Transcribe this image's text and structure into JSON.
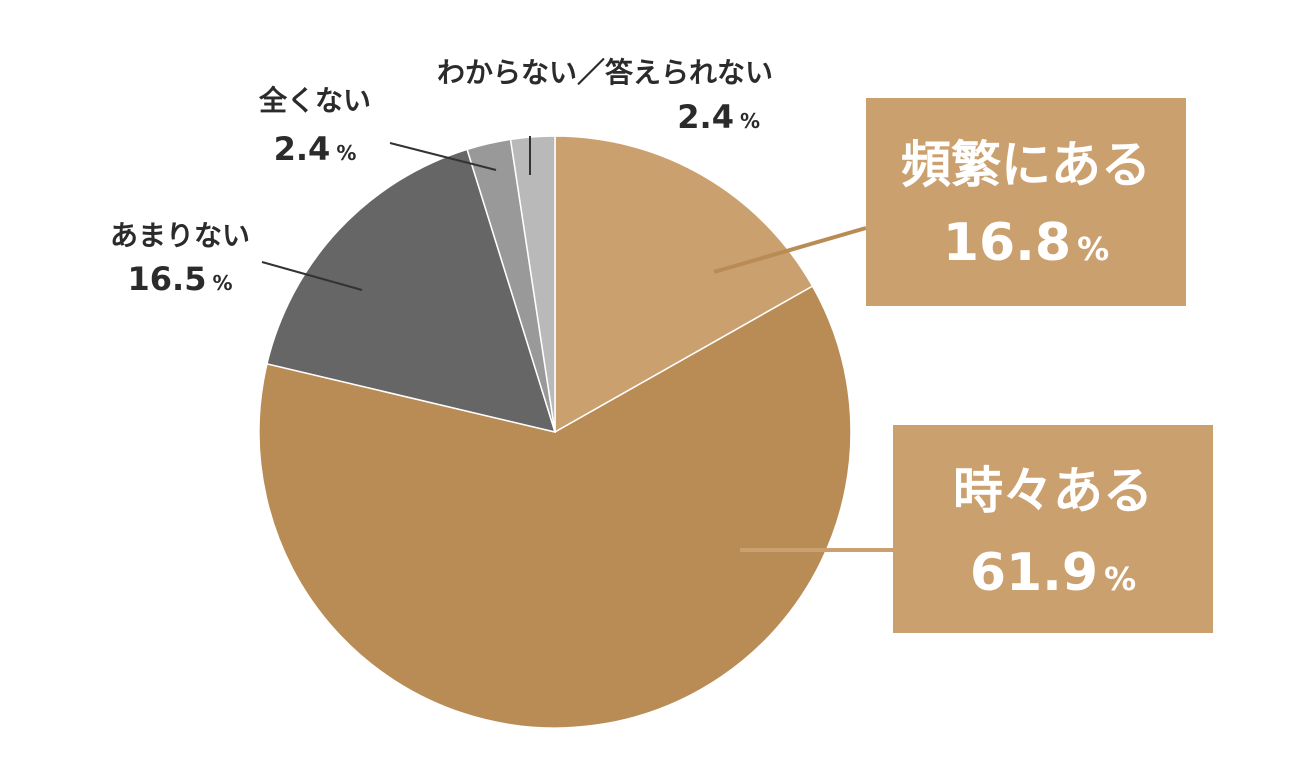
{
  "chart_data": {
    "type": "pie",
    "start_angle_deg": 0,
    "direction": "clockwise",
    "slices": [
      {
        "label": "頻繁にある",
        "value": 16.8,
        "value_text": "16.8",
        "unit": "%",
        "color": "#cba06f",
        "label_style": "box"
      },
      {
        "label": "時々ある",
        "value": 61.9,
        "value_text": "61.9",
        "unit": "%",
        "color": "#b98b55",
        "label_style": "box"
      },
      {
        "label": "あまりない",
        "value": 16.5,
        "value_text": "16.5",
        "unit": "%",
        "color": "#666666",
        "label_style": "plain"
      },
      {
        "label": "全くない",
        "value": 2.4,
        "value_text": "2.4",
        "unit": "%",
        "color": "#999999",
        "label_style": "plain"
      },
      {
        "label": "わからない／答えられない",
        "value": 2.4,
        "value_text": "2.4",
        "unit": "%",
        "color": "#b9b9b9",
        "label_style": "plain"
      }
    ]
  }
}
